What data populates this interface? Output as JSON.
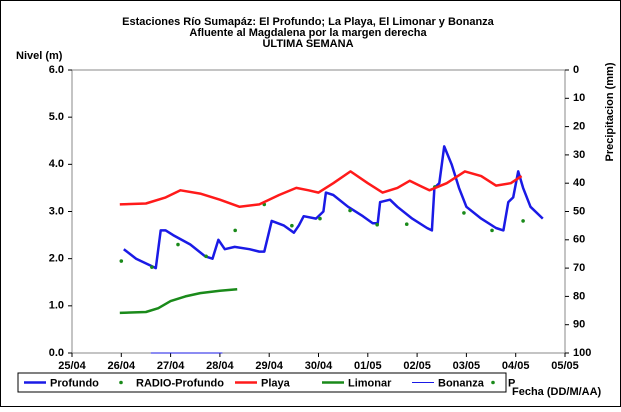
{
  "chart_data": {
    "type": "line",
    "title": [
      "Estaciones Río Sumapáz: El Profundo; La Playa, El Limonar y Bonanza",
      "Afluente al Magdalena por la margen derecha",
      "ULTIMA SEMANA"
    ],
    "y_label": "Nivel (m)",
    "y2_label": "Precipitacion (mm)",
    "x_label": "Fecha (DD/M/AA)",
    "xlim": [
      0,
      10
    ],
    "xticks": [
      {
        "value": 0,
        "label": "25/04"
      },
      {
        "value": 1,
        "label": "26/04"
      },
      {
        "value": 2,
        "label": "27/04"
      },
      {
        "value": 3,
        "label": "28/04"
      },
      {
        "value": 4,
        "label": "29/04"
      },
      {
        "value": 5,
        "label": "30/04"
      },
      {
        "value": 6,
        "label": "01/05"
      },
      {
        "value": 7,
        "label": "02/05"
      },
      {
        "value": 8,
        "label": "03/05"
      },
      {
        "value": 9,
        "label": "04/05"
      },
      {
        "value": 10,
        "label": "05/05"
      }
    ],
    "ylim": [
      0,
      6
    ],
    "yticks": [
      {
        "value": 0,
        "label": "0.0"
      },
      {
        "value": 1,
        "label": "1.0"
      },
      {
        "value": 2,
        "label": "2.0"
      },
      {
        "value": 3,
        "label": "3.0"
      },
      {
        "value": 4,
        "label": "4.0"
      },
      {
        "value": 5,
        "label": "5.0"
      },
      {
        "value": 6,
        "label": "6.0"
      }
    ],
    "y2lim": [
      0,
      100
    ],
    "y2_inverted": true,
    "y2ticks": [
      0,
      10,
      20,
      30,
      40,
      50,
      60,
      70,
      80,
      90,
      100
    ],
    "series": [
      {
        "name": "Profundo",
        "color": "#1a1ae6",
        "style": "line",
        "width": 2.5,
        "x": [
          1.05,
          1.3,
          1.6,
          1.7,
          1.8,
          1.9,
          2.05,
          2.4,
          2.7,
          2.85,
          2.97,
          3.1,
          3.3,
          3.6,
          3.8,
          3.9,
          4.05,
          4.3,
          4.5,
          4.6,
          4.7,
          4.95,
          5.1,
          5.15,
          5.3,
          5.6,
          5.9,
          6.1,
          6.2,
          6.25,
          6.45,
          6.6,
          6.9,
          7.2,
          7.3,
          7.35,
          7.45,
          7.55,
          7.7,
          7.85,
          8.0,
          8.3,
          8.6,
          8.75,
          8.85,
          8.95,
          9.05,
          9.15,
          9.3,
          9.55
        ],
        "values": [
          2.2,
          2.0,
          1.85,
          1.8,
          2.6,
          2.6,
          2.5,
          2.3,
          2.05,
          2.0,
          2.4,
          2.2,
          2.25,
          2.2,
          2.15,
          2.15,
          2.8,
          2.7,
          2.55,
          2.7,
          2.9,
          2.85,
          3.0,
          3.4,
          3.35,
          3.1,
          2.9,
          2.75,
          2.75,
          3.2,
          3.25,
          3.1,
          2.85,
          2.65,
          2.6,
          3.5,
          3.6,
          4.38,
          4.0,
          3.5,
          3.1,
          2.85,
          2.65,
          2.6,
          3.2,
          3.3,
          3.85,
          3.5,
          3.1,
          2.85
        ]
      },
      {
        "name": "RADIO-Profundo",
        "color": "#1a8a1a",
        "style": "dots",
        "x": [
          1.0,
          1.62,
          2.15,
          2.72,
          3.31,
          3.9,
          4.46,
          5.03,
          5.64,
          6.19,
          6.79,
          7.36,
          7.95,
          8.52,
          9.15
        ],
        "values": [
          1.95,
          1.82,
          2.3,
          2.05,
          2.6,
          3.15,
          2.7,
          2.85,
          3.02,
          2.72,
          2.73,
          3.52,
          2.97,
          2.6,
          2.8
        ]
      },
      {
        "name": "Playa",
        "color": "#ff1a1a",
        "style": "line",
        "width": 2.5,
        "x": [
          0.97,
          1.5,
          1.9,
          2.2,
          2.6,
          3.0,
          3.4,
          3.8,
          4.2,
          4.55,
          4.8,
          5.0,
          5.3,
          5.65,
          6.0,
          6.3,
          6.6,
          6.85,
          7.05,
          7.25,
          7.6,
          7.97,
          8.3,
          8.6,
          8.9,
          9.12
        ],
        "values": [
          3.15,
          3.17,
          3.3,
          3.45,
          3.38,
          3.25,
          3.1,
          3.15,
          3.35,
          3.5,
          3.45,
          3.4,
          3.6,
          3.85,
          3.6,
          3.4,
          3.5,
          3.65,
          3.55,
          3.45,
          3.6,
          3.85,
          3.75,
          3.55,
          3.6,
          3.75
        ]
      },
      {
        "name": "Limonar",
        "color": "#1a8a1a",
        "style": "line",
        "width": 2.5,
        "x": [
          0.97,
          1.5,
          1.75,
          2.0,
          2.3,
          2.6,
          3.0,
          3.35
        ],
        "values": [
          0.85,
          0.87,
          0.95,
          1.1,
          1.2,
          1.27,
          1.32,
          1.35
        ]
      },
      {
        "name": "Bonanza",
        "color": "#1a1ae6",
        "style": "line",
        "width": 1,
        "x": [
          1.6,
          3.05
        ],
        "values": [
          0,
          0
        ]
      },
      {
        "name": "P",
        "color": "#1a8a1a",
        "style": "dots",
        "x": [],
        "values": []
      }
    ]
  }
}
